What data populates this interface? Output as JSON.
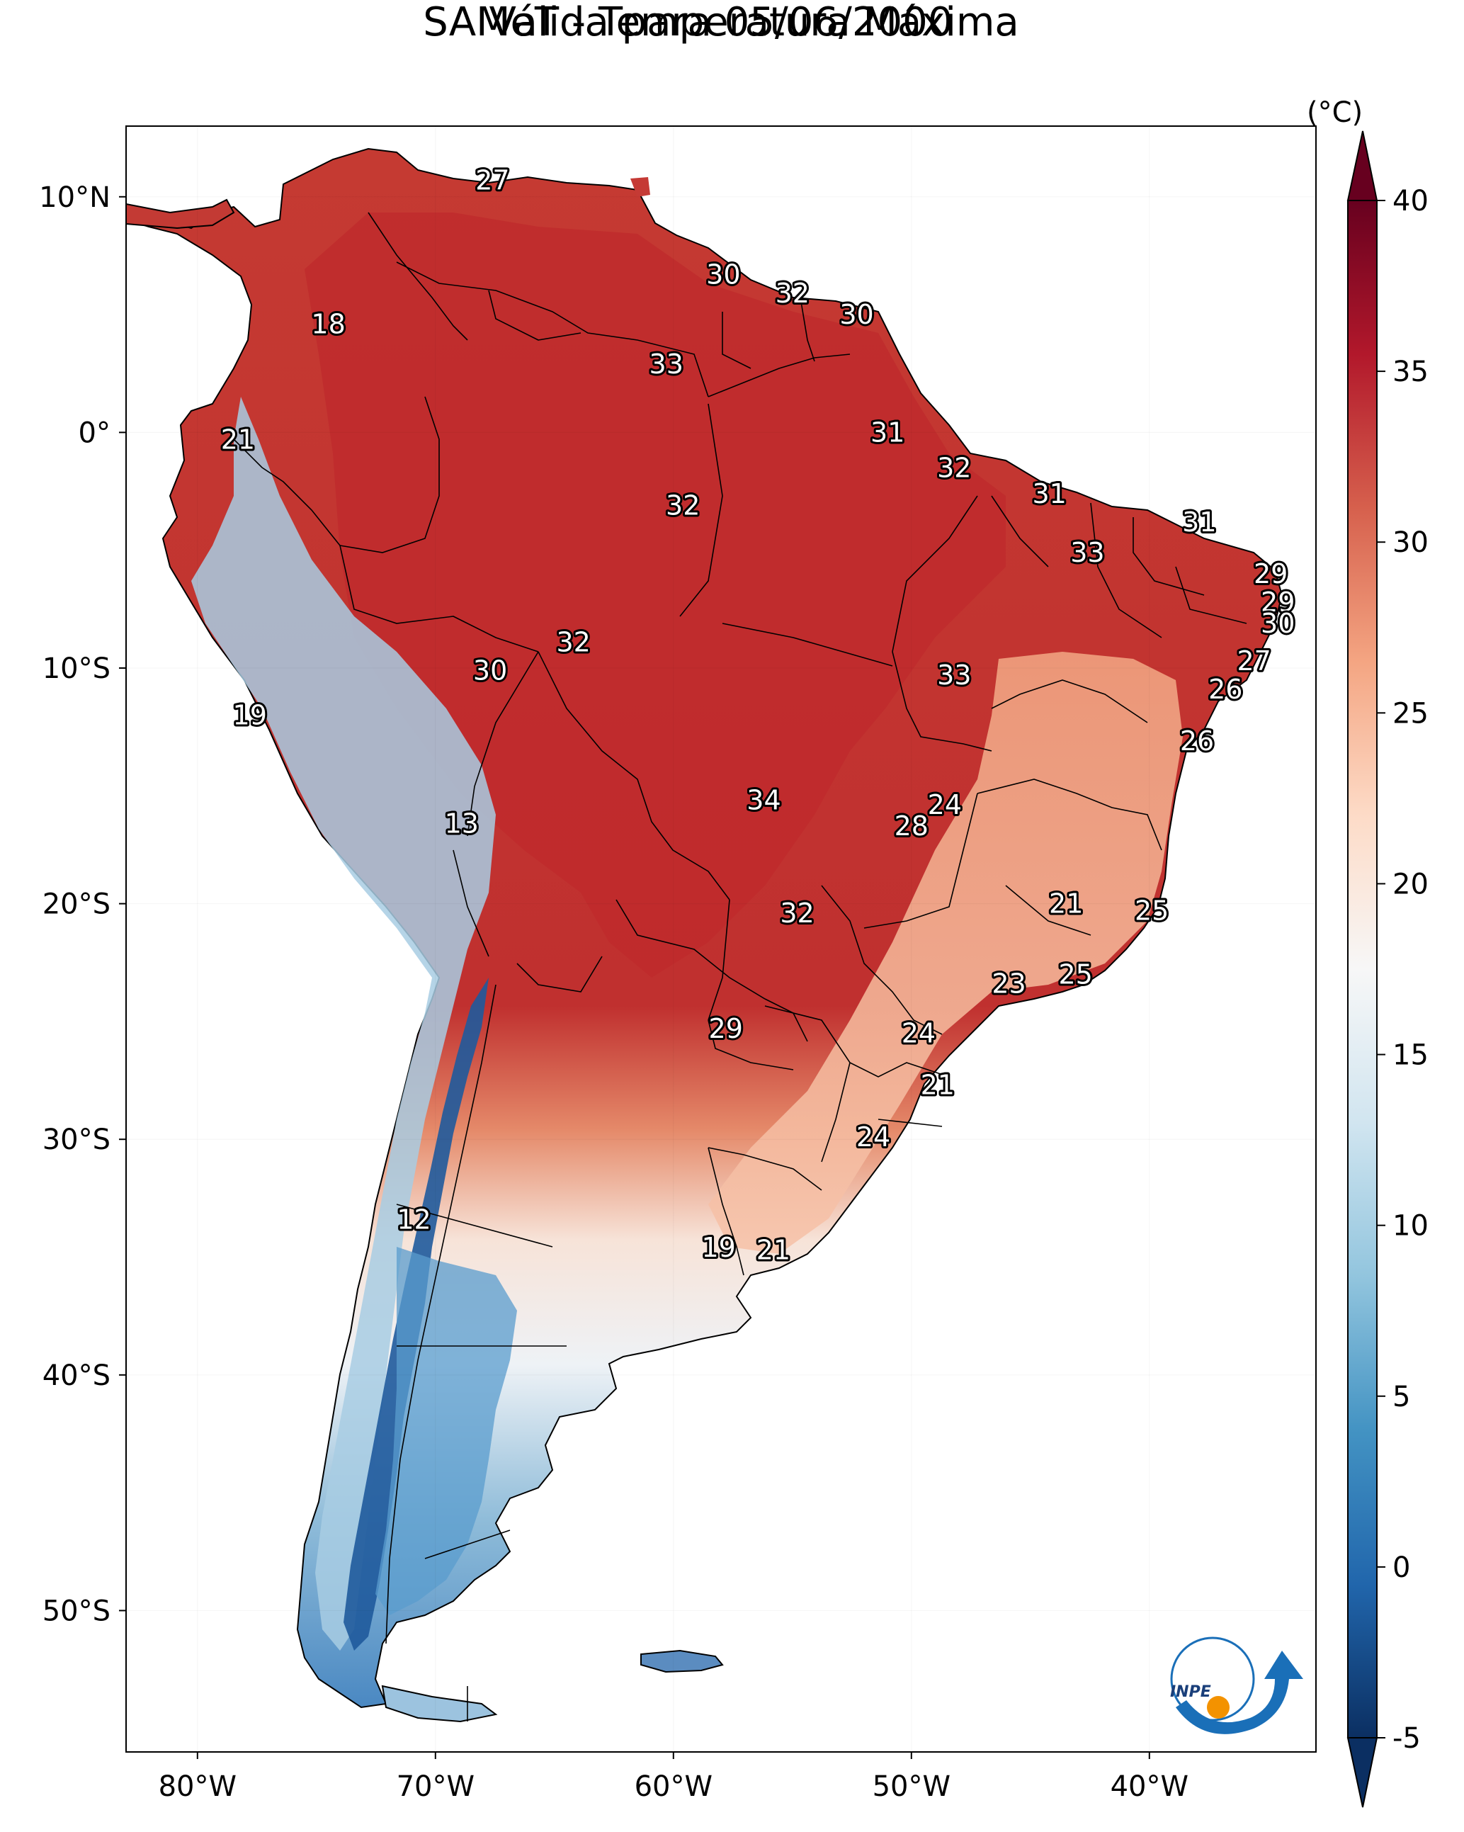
{
  "title": {
    "line1": "SAMeT - Temperatura Máxima",
    "line2": "Válida para 05/06/2000"
  },
  "map": {
    "lon_range": [
      -83,
      -33
    ],
    "lat_range": [
      -56,
      13
    ],
    "lon_ticks": [
      {
        "value": -80,
        "label": "80°W"
      },
      {
        "value": -70,
        "label": "70°W"
      },
      {
        "value": -60,
        "label": "60°W"
      },
      {
        "value": -50,
        "label": "50°W"
      },
      {
        "value": -40,
        "label": "40°W"
      }
    ],
    "lat_ticks": [
      {
        "value": 10,
        "label": "10°N"
      },
      {
        "value": 0,
        "label": "0°"
      },
      {
        "value": -10,
        "label": "10°S"
      },
      {
        "value": -20,
        "label": "20°S"
      },
      {
        "value": -30,
        "label": "30°S"
      },
      {
        "value": -40,
        "label": "40°S"
      },
      {
        "value": -50,
        "label": "50°S"
      }
    ],
    "value_labels": [
      {
        "lon": -67.6,
        "lat": 10.7,
        "text": "27"
      },
      {
        "lon": -74.5,
        "lat": 4.6,
        "text": "18"
      },
      {
        "lon": -78.3,
        "lat": -0.3,
        "text": "21"
      },
      {
        "lon": -57.9,
        "lat": 6.7,
        "text": "30"
      },
      {
        "lon": -55.0,
        "lat": 5.9,
        "text": "32"
      },
      {
        "lon": -52.3,
        "lat": 5.0,
        "text": "30"
      },
      {
        "lon": -60.3,
        "lat": 2.9,
        "text": "33"
      },
      {
        "lon": -51.0,
        "lat": 0.0,
        "text": "31"
      },
      {
        "lon": -48.2,
        "lat": -1.5,
        "text": "32"
      },
      {
        "lon": -59.6,
        "lat": -3.1,
        "text": "32"
      },
      {
        "lon": -44.2,
        "lat": -2.6,
        "text": "31"
      },
      {
        "lon": -37.9,
        "lat": -3.8,
        "text": "31"
      },
      {
        "lon": -42.6,
        "lat": -5.1,
        "text": "33"
      },
      {
        "lon": -34.9,
        "lat": -6.0,
        "text": "29"
      },
      {
        "lon": -34.6,
        "lat": -7.2,
        "text": "29"
      },
      {
        "lon": -34.6,
        "lat": -8.1,
        "text": "30"
      },
      {
        "lon": -35.6,
        "lat": -9.7,
        "text": "27"
      },
      {
        "lon": -36.8,
        "lat": -10.9,
        "text": "26"
      },
      {
        "lon": -64.2,
        "lat": -8.9,
        "text": "32"
      },
      {
        "lon": -67.7,
        "lat": -10.1,
        "text": "30"
      },
      {
        "lon": -48.2,
        "lat": -10.3,
        "text": "33"
      },
      {
        "lon": -77.8,
        "lat": -12.0,
        "text": "19"
      },
      {
        "lon": -38.0,
        "lat": -13.1,
        "text": "26"
      },
      {
        "lon": -68.9,
        "lat": -16.6,
        "text": "13"
      },
      {
        "lon": -56.2,
        "lat": -15.6,
        "text": "34"
      },
      {
        "lon": -48.6,
        "lat": -15.8,
        "text": "24"
      },
      {
        "lon": -50.0,
        "lat": -16.7,
        "text": "28"
      },
      {
        "lon": -43.5,
        "lat": -20.0,
        "text": "21"
      },
      {
        "lon": -39.9,
        "lat": -20.3,
        "text": "25"
      },
      {
        "lon": -54.8,
        "lat": -20.4,
        "text": "32"
      },
      {
        "lon": -43.1,
        "lat": -23.0,
        "text": "25"
      },
      {
        "lon": -45.9,
        "lat": -23.4,
        "text": "23"
      },
      {
        "lon": -49.7,
        "lat": -25.5,
        "text": "24"
      },
      {
        "lon": -57.8,
        "lat": -25.3,
        "text": "29"
      },
      {
        "lon": -48.9,
        "lat": -27.7,
        "text": "21"
      },
      {
        "lon": -51.6,
        "lat": -29.9,
        "text": "24"
      },
      {
        "lon": -70.9,
        "lat": -33.4,
        "text": "12"
      },
      {
        "lon": -58.1,
        "lat": -34.6,
        "text": "19"
      },
      {
        "lon": -55.8,
        "lat": -34.7,
        "text": "21"
      }
    ]
  },
  "colorbar": {
    "unit": "(°C)",
    "min": -5,
    "max": 40,
    "ticks": [
      "40",
      "35",
      "30",
      "25",
      "20",
      "15",
      "10",
      "5",
      "0",
      "-5"
    ],
    "colors": [
      "#0b2f62",
      "#2166ac",
      "#4393c3",
      "#92c5de",
      "#d1e5f0",
      "#f7f7f7",
      "#fddbc7",
      "#f4a582",
      "#d6604d",
      "#b2182b",
      "#67001f"
    ]
  },
  "logo": {
    "text": "INPE",
    "colors": {
      "blue": "#1a6fb8",
      "orange": "#f39200"
    }
  }
}
